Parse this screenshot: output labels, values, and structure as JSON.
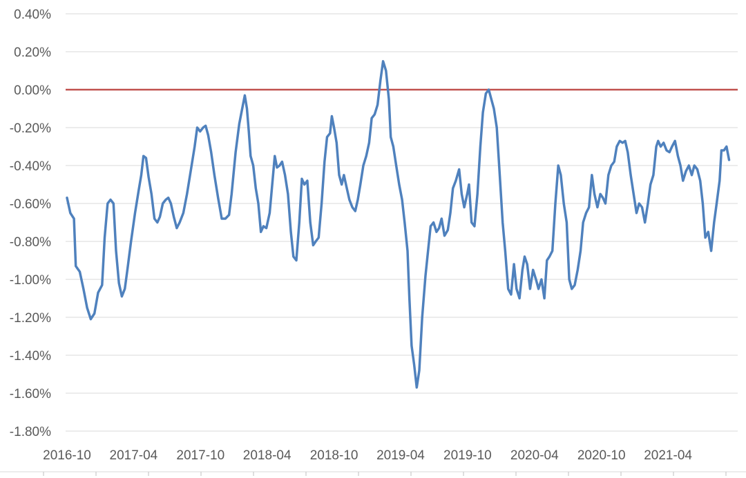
{
  "chart_data": {
    "type": "line",
    "title": "",
    "xlabel": "",
    "ylabel": "",
    "ylim": [
      -1.8,
      0.4
    ],
    "y_unit": "%",
    "y_ticks": [
      "0.40%",
      "0.20%",
      "0.00%",
      "-0.20%",
      "-0.40%",
      "-0.60%",
      "-0.80%",
      "-1.00%",
      "-1.20%",
      "-1.40%",
      "-1.60%",
      "-1.80%"
    ],
    "x_ticks": [
      "2016-10",
      "2017-04",
      "2017-10",
      "2018-04",
      "2018-10",
      "2019-04",
      "2019-10",
      "2020-04",
      "2020-10",
      "2021-04"
    ],
    "grid": true,
    "reference_line": {
      "value": 0.0,
      "color": "#c0504d"
    },
    "colors": {
      "series": "#4f81bd",
      "grid": "#d9d9d9",
      "axis_text": "#595959"
    },
    "series": [
      {
        "values": [
          [
            "2016-10-01",
            -0.57
          ],
          [
            "2016-10-10",
            -0.65
          ],
          [
            "2016-10-20",
            -0.68
          ],
          [
            "2016-10-25",
            -0.93
          ],
          [
            "2016-11-05",
            -0.96
          ],
          [
            "2016-11-15",
            -1.05
          ],
          [
            "2016-11-25",
            -1.15
          ],
          [
            "2016-12-05",
            -1.21
          ],
          [
            "2016-12-15",
            -1.18
          ],
          [
            "2016-12-25",
            -1.07
          ],
          [
            "2017-01-05",
            -1.03
          ],
          [
            "2017-01-12",
            -0.78
          ],
          [
            "2017-01-20",
            -0.6
          ],
          [
            "2017-01-28",
            -0.58
          ],
          [
            "2017-02-05",
            -0.6
          ],
          [
            "2017-02-12",
            -0.85
          ],
          [
            "2017-02-20",
            -1.02
          ],
          [
            "2017-02-28",
            -1.09
          ],
          [
            "2017-03-08",
            -1.05
          ],
          [
            "2017-03-15",
            -0.95
          ],
          [
            "2017-03-25",
            -0.8
          ],
          [
            "2017-04-05",
            -0.65
          ],
          [
            "2017-04-15",
            -0.53
          ],
          [
            "2017-04-22",
            -0.45
          ],
          [
            "2017-04-28",
            -0.35
          ],
          [
            "2017-05-05",
            -0.36
          ],
          [
            "2017-05-12",
            -0.46
          ],
          [
            "2017-05-20",
            -0.55
          ],
          [
            "2017-05-28",
            -0.68
          ],
          [
            "2017-06-05",
            -0.7
          ],
          [
            "2017-06-12",
            -0.67
          ],
          [
            "2017-06-20",
            -0.6
          ],
          [
            "2017-06-28",
            -0.58
          ],
          [
            "2017-07-05",
            -0.57
          ],
          [
            "2017-07-12",
            -0.6
          ],
          [
            "2017-07-20",
            -0.67
          ],
          [
            "2017-07-28",
            -0.73
          ],
          [
            "2017-08-05",
            -0.7
          ],
          [
            "2017-08-15",
            -0.65
          ],
          [
            "2017-08-25",
            -0.55
          ],
          [
            "2017-09-05",
            -0.42
          ],
          [
            "2017-09-15",
            -0.3
          ],
          [
            "2017-09-22",
            -0.2
          ],
          [
            "2017-09-30",
            -0.22
          ],
          [
            "2017-10-08",
            -0.2
          ],
          [
            "2017-10-15",
            -0.19
          ],
          [
            "2017-10-22",
            -0.24
          ],
          [
            "2017-10-30",
            -0.33
          ],
          [
            "2017-11-08",
            -0.45
          ],
          [
            "2017-11-18",
            -0.57
          ],
          [
            "2017-11-28",
            -0.68
          ],
          [
            "2017-12-08",
            -0.68
          ],
          [
            "2017-12-18",
            -0.66
          ],
          [
            "2017-12-25",
            -0.55
          ],
          [
            "2018-01-05",
            -0.33
          ],
          [
            "2018-01-15",
            -0.18
          ],
          [
            "2018-01-25",
            -0.08
          ],
          [
            "2018-01-30",
            -0.03
          ],
          [
            "2018-02-05",
            -0.1
          ],
          [
            "2018-02-10",
            -0.22
          ],
          [
            "2018-02-15",
            -0.35
          ],
          [
            "2018-02-22",
            -0.4
          ],
          [
            "2018-03-01",
            -0.52
          ],
          [
            "2018-03-08",
            -0.6
          ],
          [
            "2018-03-15",
            -0.75
          ],
          [
            "2018-03-22",
            -0.72
          ],
          [
            "2018-03-30",
            -0.73
          ],
          [
            "2018-04-08",
            -0.65
          ],
          [
            "2018-04-15",
            -0.5
          ],
          [
            "2018-04-22",
            -0.35
          ],
          [
            "2018-04-28",
            -0.41
          ],
          [
            "2018-05-05",
            -0.4
          ],
          [
            "2018-05-12",
            -0.38
          ],
          [
            "2018-05-20",
            -0.45
          ],
          [
            "2018-05-28",
            -0.55
          ],
          [
            "2018-06-05",
            -0.75
          ],
          [
            "2018-06-12",
            -0.88
          ],
          [
            "2018-06-20",
            -0.9
          ],
          [
            "2018-06-28",
            -0.7
          ],
          [
            "2018-07-05",
            -0.47
          ],
          [
            "2018-07-12",
            -0.5
          ],
          [
            "2018-07-20",
            -0.48
          ],
          [
            "2018-07-28",
            -0.7
          ],
          [
            "2018-08-05",
            -0.82
          ],
          [
            "2018-08-12",
            -0.8
          ],
          [
            "2018-08-20",
            -0.78
          ],
          [
            "2018-08-28",
            -0.6
          ],
          [
            "2018-09-05",
            -0.38
          ],
          [
            "2018-09-12",
            -0.25
          ],
          [
            "2018-09-20",
            -0.23
          ],
          [
            "2018-09-25",
            -0.14
          ],
          [
            "2018-10-01",
            -0.2
          ],
          [
            "2018-10-08",
            -0.28
          ],
          [
            "2018-10-15",
            -0.45
          ],
          [
            "2018-10-22",
            -0.5
          ],
          [
            "2018-10-28",
            -0.45
          ],
          [
            "2018-11-05",
            -0.52
          ],
          [
            "2018-11-12",
            -0.58
          ],
          [
            "2018-11-20",
            -0.62
          ],
          [
            "2018-11-28",
            -0.64
          ],
          [
            "2018-12-05",
            -0.58
          ],
          [
            "2018-12-12",
            -0.5
          ],
          [
            "2018-12-20",
            -0.4
          ],
          [
            "2018-12-28",
            -0.35
          ],
          [
            "2019-01-05",
            -0.28
          ],
          [
            "2019-01-12",
            -0.15
          ],
          [
            "2019-01-20",
            -0.13
          ],
          [
            "2019-01-28",
            -0.08
          ],
          [
            "2019-02-05",
            0.05
          ],
          [
            "2019-02-12",
            0.15
          ],
          [
            "2019-02-20",
            0.1
          ],
          [
            "2019-02-28",
            -0.05
          ],
          [
            "2019-03-05",
            -0.25
          ],
          [
            "2019-03-12",
            -0.3
          ],
          [
            "2019-03-20",
            -0.4
          ],
          [
            "2019-03-28",
            -0.5
          ],
          [
            "2019-04-05",
            -0.58
          ],
          [
            "2019-04-12",
            -0.7
          ],
          [
            "2019-04-20",
            -0.85
          ],
          [
            "2019-04-25",
            -1.1
          ],
          [
            "2019-05-01",
            -1.35
          ],
          [
            "2019-05-08",
            -1.45
          ],
          [
            "2019-05-15",
            -1.57
          ],
          [
            "2019-05-22",
            -1.48
          ],
          [
            "2019-05-30",
            -1.2
          ],
          [
            "2019-06-08",
            -0.98
          ],
          [
            "2019-06-15",
            -0.85
          ],
          [
            "2019-06-22",
            -0.72
          ],
          [
            "2019-06-30",
            -0.7
          ],
          [
            "2019-07-08",
            -0.75
          ],
          [
            "2019-07-15",
            -0.73
          ],
          [
            "2019-07-22",
            -0.68
          ],
          [
            "2019-07-30",
            -0.77
          ],
          [
            "2019-08-08",
            -0.74
          ],
          [
            "2019-08-15",
            -0.65
          ],
          [
            "2019-08-22",
            -0.52
          ],
          [
            "2019-08-30",
            -0.48
          ],
          [
            "2019-09-08",
            -0.42
          ],
          [
            "2019-09-15",
            -0.55
          ],
          [
            "2019-09-22",
            -0.62
          ],
          [
            "2019-09-30",
            -0.55
          ],
          [
            "2019-10-05",
            -0.5
          ],
          [
            "2019-10-12",
            -0.7
          ],
          [
            "2019-10-20",
            -0.72
          ],
          [
            "2019-10-28",
            -0.55
          ],
          [
            "2019-11-05",
            -0.3
          ],
          [
            "2019-11-12",
            -0.12
          ],
          [
            "2019-11-20",
            -0.02
          ],
          [
            "2019-11-28",
            0.0
          ],
          [
            "2019-12-05",
            -0.05
          ],
          [
            "2019-12-12",
            -0.1
          ],
          [
            "2019-12-20",
            -0.2
          ],
          [
            "2019-12-28",
            -0.45
          ],
          [
            "2020-01-05",
            -0.7
          ],
          [
            "2020-01-12",
            -0.85
          ],
          [
            "2020-01-20",
            -1.05
          ],
          [
            "2020-01-28",
            -1.08
          ],
          [
            "2020-02-05",
            -0.92
          ],
          [
            "2020-02-12",
            -1.05
          ],
          [
            "2020-02-20",
            -1.1
          ],
          [
            "2020-02-28",
            -0.95
          ],
          [
            "2020-03-05",
            -0.88
          ],
          [
            "2020-03-12",
            -0.92
          ],
          [
            "2020-03-20",
            -1.05
          ],
          [
            "2020-03-28",
            -0.95
          ],
          [
            "2020-04-05",
            -1.0
          ],
          [
            "2020-04-12",
            -1.05
          ],
          [
            "2020-04-20",
            -1.0
          ],
          [
            "2020-04-28",
            -1.1
          ],
          [
            "2020-05-05",
            -0.9
          ],
          [
            "2020-05-12",
            -0.88
          ],
          [
            "2020-05-20",
            -0.85
          ],
          [
            "2020-05-28",
            -0.6
          ],
          [
            "2020-06-05",
            -0.4
          ],
          [
            "2020-06-12",
            -0.45
          ],
          [
            "2020-06-20",
            -0.6
          ],
          [
            "2020-06-28",
            -0.7
          ],
          [
            "2020-07-05",
            -1.0
          ],
          [
            "2020-07-12",
            -1.05
          ],
          [
            "2020-07-20",
            -1.03
          ],
          [
            "2020-07-28",
            -0.95
          ],
          [
            "2020-08-05",
            -0.85
          ],
          [
            "2020-08-12",
            -0.7
          ],
          [
            "2020-08-20",
            -0.65
          ],
          [
            "2020-08-28",
            -0.62
          ],
          [
            "2020-09-05",
            -0.45
          ],
          [
            "2020-09-12",
            -0.55
          ],
          [
            "2020-09-20",
            -0.62
          ],
          [
            "2020-09-28",
            -0.55
          ],
          [
            "2020-10-05",
            -0.57
          ],
          [
            "2020-10-12",
            -0.6
          ],
          [
            "2020-10-20",
            -0.45
          ],
          [
            "2020-10-28",
            -0.4
          ],
          [
            "2020-11-05",
            -0.38
          ],
          [
            "2020-11-12",
            -0.3
          ],
          [
            "2020-11-20",
            -0.27
          ],
          [
            "2020-11-28",
            -0.28
          ],
          [
            "2020-12-05",
            -0.27
          ],
          [
            "2020-12-12",
            -0.33
          ],
          [
            "2020-12-20",
            -0.45
          ],
          [
            "2020-12-28",
            -0.55
          ],
          [
            "2021-01-05",
            -0.65
          ],
          [
            "2021-01-12",
            -0.6
          ],
          [
            "2021-01-20",
            -0.62
          ],
          [
            "2021-01-28",
            -0.7
          ],
          [
            "2021-02-05",
            -0.6
          ],
          [
            "2021-02-12",
            -0.5
          ],
          [
            "2021-02-20",
            -0.45
          ],
          [
            "2021-02-28",
            -0.3
          ],
          [
            "2021-03-05",
            -0.27
          ],
          [
            "2021-03-12",
            -0.3
          ],
          [
            "2021-03-20",
            -0.28
          ],
          [
            "2021-03-28",
            -0.32
          ],
          [
            "2021-04-05",
            -0.33
          ],
          [
            "2021-04-12",
            -0.3
          ],
          [
            "2021-04-20",
            -0.27
          ],
          [
            "2021-04-28",
            -0.35
          ],
          [
            "2021-05-05",
            -0.4
          ],
          [
            "2021-05-12",
            -0.48
          ],
          [
            "2021-05-20",
            -0.43
          ],
          [
            "2021-05-28",
            -0.4
          ],
          [
            "2021-06-05",
            -0.45
          ],
          [
            "2021-06-12",
            -0.4
          ],
          [
            "2021-06-20",
            -0.42
          ],
          [
            "2021-06-28",
            -0.48
          ],
          [
            "2021-07-05",
            -0.6
          ],
          [
            "2021-07-12",
            -0.78
          ],
          [
            "2021-07-20",
            -0.75
          ],
          [
            "2021-07-28",
            -0.85
          ],
          [
            "2021-08-05",
            -0.7
          ],
          [
            "2021-08-12",
            -0.6
          ],
          [
            "2021-08-20",
            -0.48
          ],
          [
            "2021-08-25",
            -0.32
          ],
          [
            "2021-09-01",
            -0.32
          ],
          [
            "2021-09-08",
            -0.3
          ],
          [
            "2021-09-15",
            -0.37
          ]
        ]
      }
    ]
  }
}
